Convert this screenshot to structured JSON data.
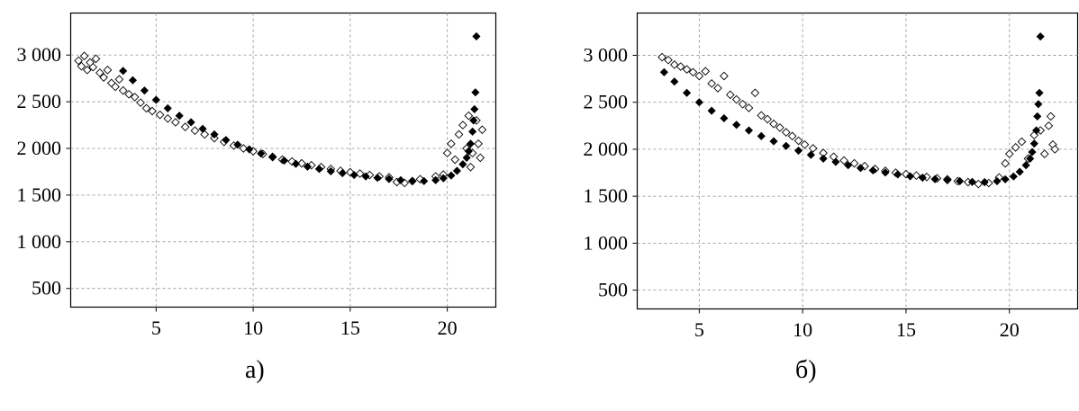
{
  "chart_data": [
    {
      "type": "scatter",
      "panel_label": "а)",
      "xlim": [
        0.6,
        22.5
      ],
      "ylim": [
        300,
        3450
      ],
      "x_ticks": [
        5,
        10,
        15,
        20
      ],
      "x_tick_labels": [
        "5",
        "10",
        "15",
        "20"
      ],
      "y_ticks": [
        500,
        1000,
        1500,
        2000,
        2500,
        3000
      ],
      "y_tick_labels": [
        "500",
        "1 000",
        "1 500",
        "2 000",
        "2 500",
        "3 000"
      ],
      "grid": true,
      "series": [
        {
          "marker": "open-diamond",
          "points": [
            [
              1.0,
              2940
            ],
            [
              1.15,
              2880
            ],
            [
              1.3,
              2990
            ],
            [
              1.45,
              2840
            ],
            [
              1.6,
              2920
            ],
            [
              1.75,
              2870
            ],
            [
              1.9,
              2960
            ],
            [
              2.1,
              2810
            ],
            [
              2.3,
              2760
            ],
            [
              2.5,
              2840
            ],
            [
              2.7,
              2700
            ],
            [
              2.9,
              2660
            ],
            [
              3.1,
              2740
            ],
            [
              3.3,
              2620
            ],
            [
              3.6,
              2580
            ],
            [
              3.9,
              2550
            ],
            [
              4.2,
              2490
            ],
            [
              4.5,
              2430
            ],
            [
              4.8,
              2400
            ],
            [
              5.2,
              2360
            ],
            [
              5.6,
              2320
            ],
            [
              6.0,
              2280
            ],
            [
              6.5,
              2230
            ],
            [
              7.0,
              2190
            ],
            [
              7.5,
              2150
            ],
            [
              8.0,
              2110
            ],
            [
              8.5,
              2070
            ],
            [
              9.0,
              2030
            ],
            [
              9.5,
              2000
            ],
            [
              10.0,
              1970
            ],
            [
              10.5,
              1940
            ],
            [
              11.0,
              1910
            ],
            [
              11.5,
              1880
            ],
            [
              12.0,
              1860
            ],
            [
              12.5,
              1840
            ],
            [
              13.0,
              1820
            ],
            [
              13.5,
              1800
            ],
            [
              14.0,
              1780
            ],
            [
              14.5,
              1760
            ],
            [
              15.0,
              1745
            ],
            [
              15.5,
              1730
            ],
            [
              16.0,
              1715
            ],
            [
              16.5,
              1700
            ],
            [
              17.0,
              1690
            ],
            [
              17.4,
              1640
            ],
            [
              17.8,
              1630
            ],
            [
              18.2,
              1650
            ],
            [
              18.6,
              1670
            ],
            [
              19.4,
              1700
            ],
            [
              19.8,
              1720
            ],
            [
              20.0,
              1950
            ],
            [
              20.2,
              2050
            ],
            [
              20.4,
              1880
            ],
            [
              20.6,
              2150
            ],
            [
              20.8,
              2250
            ],
            [
              21.0,
              2000
            ],
            [
              21.1,
              2350
            ],
            [
              21.2,
              1800
            ],
            [
              21.3,
              1950
            ],
            [
              21.5,
              2300
            ],
            [
              21.6,
              2050
            ],
            [
              21.7,
              1900
            ],
            [
              21.8,
              2200
            ]
          ]
        },
        {
          "marker": "filled-diamond",
          "points": [
            [
              3.3,
              2830
            ],
            [
              3.8,
              2730
            ],
            [
              4.4,
              2620
            ],
            [
              5.0,
              2520
            ],
            [
              5.6,
              2430
            ],
            [
              6.2,
              2350
            ],
            [
              6.8,
              2280
            ],
            [
              7.4,
              2210
            ],
            [
              8.0,
              2150
            ],
            [
              8.6,
              2090
            ],
            [
              9.2,
              2040
            ],
            [
              9.8,
              1990
            ],
            [
              10.4,
              1945
            ],
            [
              11.0,
              1905
            ],
            [
              11.6,
              1870
            ],
            [
              12.2,
              1835
            ],
            [
              12.8,
              1805
            ],
            [
              13.4,
              1780
            ],
            [
              14.0,
              1755
            ],
            [
              14.6,
              1735
            ],
            [
              15.2,
              1715
            ],
            [
              15.8,
              1700
            ],
            [
              16.4,
              1685
            ],
            [
              17.0,
              1672
            ],
            [
              17.6,
              1660
            ],
            [
              18.2,
              1652
            ],
            [
              18.8,
              1650
            ],
            [
              19.4,
              1660
            ],
            [
              19.8,
              1680
            ],
            [
              20.2,
              1710
            ],
            [
              20.5,
              1760
            ],
            [
              20.8,
              1830
            ],
            [
              21.0,
              1900
            ],
            [
              21.1,
              1970
            ],
            [
              21.2,
              2050
            ],
            [
              21.3,
              2180
            ],
            [
              21.35,
              2300
            ],
            [
              21.4,
              2420
            ],
            [
              21.45,
              2600
            ],
            [
              21.5,
              3200
            ]
          ]
        }
      ]
    },
    {
      "type": "scatter",
      "panel_label": "б)",
      "xlim": [
        2.0,
        23.3
      ],
      "ylim": [
        300,
        3450
      ],
      "x_ticks": [
        5,
        10,
        15,
        20
      ],
      "x_tick_labels": [
        "5",
        "10",
        "15",
        "20"
      ],
      "y_ticks": [
        500,
        1000,
        1500,
        2000,
        2500,
        3000
      ],
      "y_tick_labels": [
        "500",
        "1 000",
        "1 500",
        "2 000",
        "2 500",
        "3 000"
      ],
      "grid": true,
      "series": [
        {
          "marker": "open-diamond",
          "points": [
            [
              3.2,
              2980
            ],
            [
              3.5,
              2950
            ],
            [
              3.8,
              2900
            ],
            [
              4.1,
              2880
            ],
            [
              4.4,
              2850
            ],
            [
              4.7,
              2820
            ],
            [
              5.0,
              2780
            ],
            [
              5.3,
              2830
            ],
            [
              5.6,
              2700
            ],
            [
              5.9,
              2650
            ],
            [
              6.2,
              2780
            ],
            [
              6.5,
              2580
            ],
            [
              6.8,
              2530
            ],
            [
              7.1,
              2480
            ],
            [
              7.4,
              2440
            ],
            [
              7.7,
              2600
            ],
            [
              8.0,
              2360
            ],
            [
              8.3,
              2320
            ],
            [
              8.6,
              2270
            ],
            [
              8.9,
              2230
            ],
            [
              9.2,
              2180
            ],
            [
              9.5,
              2140
            ],
            [
              9.8,
              2090
            ],
            [
              10.1,
              2050
            ],
            [
              10.5,
              2010
            ],
            [
              11.0,
              1960
            ],
            [
              11.5,
              1920
            ],
            [
              12.0,
              1880
            ],
            [
              12.5,
              1850
            ],
            [
              13.0,
              1820
            ],
            [
              13.5,
              1790
            ],
            [
              14.0,
              1770
            ],
            [
              14.5,
              1750
            ],
            [
              15.0,
              1735
            ],
            [
              15.5,
              1720
            ],
            [
              16.0,
              1705
            ],
            [
              16.5,
              1690
            ],
            [
              17.0,
              1680
            ],
            [
              17.5,
              1660
            ],
            [
              18.0,
              1650
            ],
            [
              18.5,
              1630
            ],
            [
              19.0,
              1640
            ],
            [
              19.5,
              1700
            ],
            [
              19.8,
              1850
            ],
            [
              20.0,
              1950
            ],
            [
              20.3,
              2020
            ],
            [
              20.6,
              2080
            ],
            [
              20.9,
              1900
            ],
            [
              21.2,
              2150
            ],
            [
              21.5,
              2200
            ],
            [
              21.7,
              1950
            ],
            [
              21.9,
              2250
            ],
            [
              22.0,
              2350
            ],
            [
              22.1,
              2050
            ],
            [
              22.2,
              2000
            ]
          ]
        },
        {
          "marker": "filled-diamond",
          "points": [
            [
              3.3,
              2820
            ],
            [
              3.8,
              2720
            ],
            [
              4.4,
              2600
            ],
            [
              5.0,
              2500
            ],
            [
              5.6,
              2410
            ],
            [
              6.2,
              2330
            ],
            [
              6.8,
              2260
            ],
            [
              7.4,
              2200
            ],
            [
              8.0,
              2140
            ],
            [
              8.6,
              2085
            ],
            [
              9.2,
              2035
            ],
            [
              9.8,
              1985
            ],
            [
              10.4,
              1940
            ],
            [
              11.0,
              1900
            ],
            [
              11.6,
              1865
            ],
            [
              12.2,
              1830
            ],
            [
              12.8,
              1800
            ],
            [
              13.4,
              1775
            ],
            [
              14.0,
              1752
            ],
            [
              14.6,
              1732
            ],
            [
              15.2,
              1712
            ],
            [
              15.8,
              1697
            ],
            [
              16.4,
              1682
            ],
            [
              17.0,
              1670
            ],
            [
              17.6,
              1660
            ],
            [
              18.2,
              1652
            ],
            [
              18.8,
              1650
            ],
            [
              19.4,
              1660
            ],
            [
              19.8,
              1680
            ],
            [
              20.2,
              1710
            ],
            [
              20.5,
              1760
            ],
            [
              20.8,
              1830
            ],
            [
              21.0,
              1900
            ],
            [
              21.1,
              1970
            ],
            [
              21.2,
              2060
            ],
            [
              21.3,
              2200
            ],
            [
              21.35,
              2350
            ],
            [
              21.4,
              2480
            ],
            [
              21.45,
              2600
            ],
            [
              21.5,
              3200
            ]
          ]
        }
      ]
    }
  ]
}
